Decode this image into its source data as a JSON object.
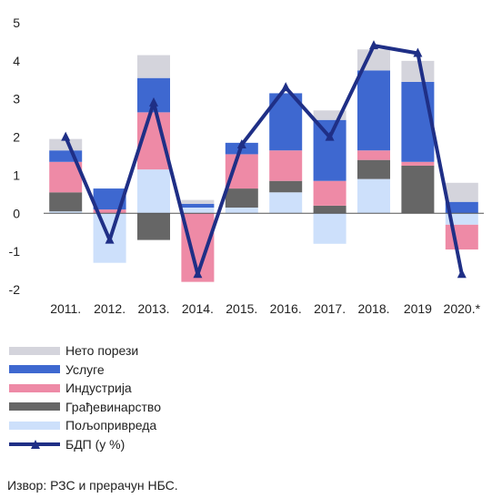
{
  "chart_data": {
    "type": "bar",
    "stacked": true,
    "title": "",
    "xlabel": "",
    "ylabel": "",
    "ylim": [
      -2,
      5
    ],
    "yticks": [
      -2,
      -1,
      0,
      1,
      2,
      3,
      4,
      5
    ],
    "grid": false,
    "legend_position": "bottom",
    "categories": [
      "2011.",
      "2012.",
      "2013.",
      "2014.",
      "2015.",
      "2016.",
      "2017.",
      "2018.",
      "2019",
      "2020.*"
    ],
    "series": [
      {
        "name": "Нето порези",
        "kind": "bar",
        "color": "#d4d4dc",
        "values": [
          0.3,
          0.0,
          0.6,
          0.1,
          0.0,
          0.0,
          0.25,
          0.55,
          0.55,
          0.5
        ]
      },
      {
        "name": "Услуге",
        "kind": "bar",
        "color": "#3e68d0",
        "values": [
          0.3,
          0.55,
          0.9,
          0.1,
          0.3,
          1.5,
          1.6,
          2.1,
          2.1,
          0.3
        ]
      },
      {
        "name": "Индустрија",
        "kind": "bar",
        "color": "#ee8aa6",
        "values": [
          0.8,
          0.1,
          1.5,
          -1.8,
          0.9,
          0.8,
          0.65,
          0.25,
          0.1,
          -0.65
        ]
      },
      {
        "name": "Грађевинарство",
        "kind": "bar",
        "color": "#666666",
        "values": [
          0.5,
          0.0,
          -0.7,
          0.0,
          0.5,
          0.3,
          0.2,
          0.5,
          1.25,
          0.0
        ]
      },
      {
        "name": "Пољопривреда",
        "kind": "bar",
        "color": "#cde0fb",
        "values": [
          0.05,
          -1.3,
          1.15,
          0.15,
          0.15,
          0.55,
          -0.8,
          0.9,
          0.0,
          -0.3
        ]
      },
      {
        "name": "БДП (у %)",
        "kind": "line",
        "color": "#1f2f86",
        "values": [
          2.0,
          -0.7,
          2.9,
          -1.6,
          1.8,
          3.3,
          2.0,
          4.4,
          4.2,
          -1.6
        ]
      }
    ]
  },
  "source": "Извор: РЗС и прерачун НБС."
}
